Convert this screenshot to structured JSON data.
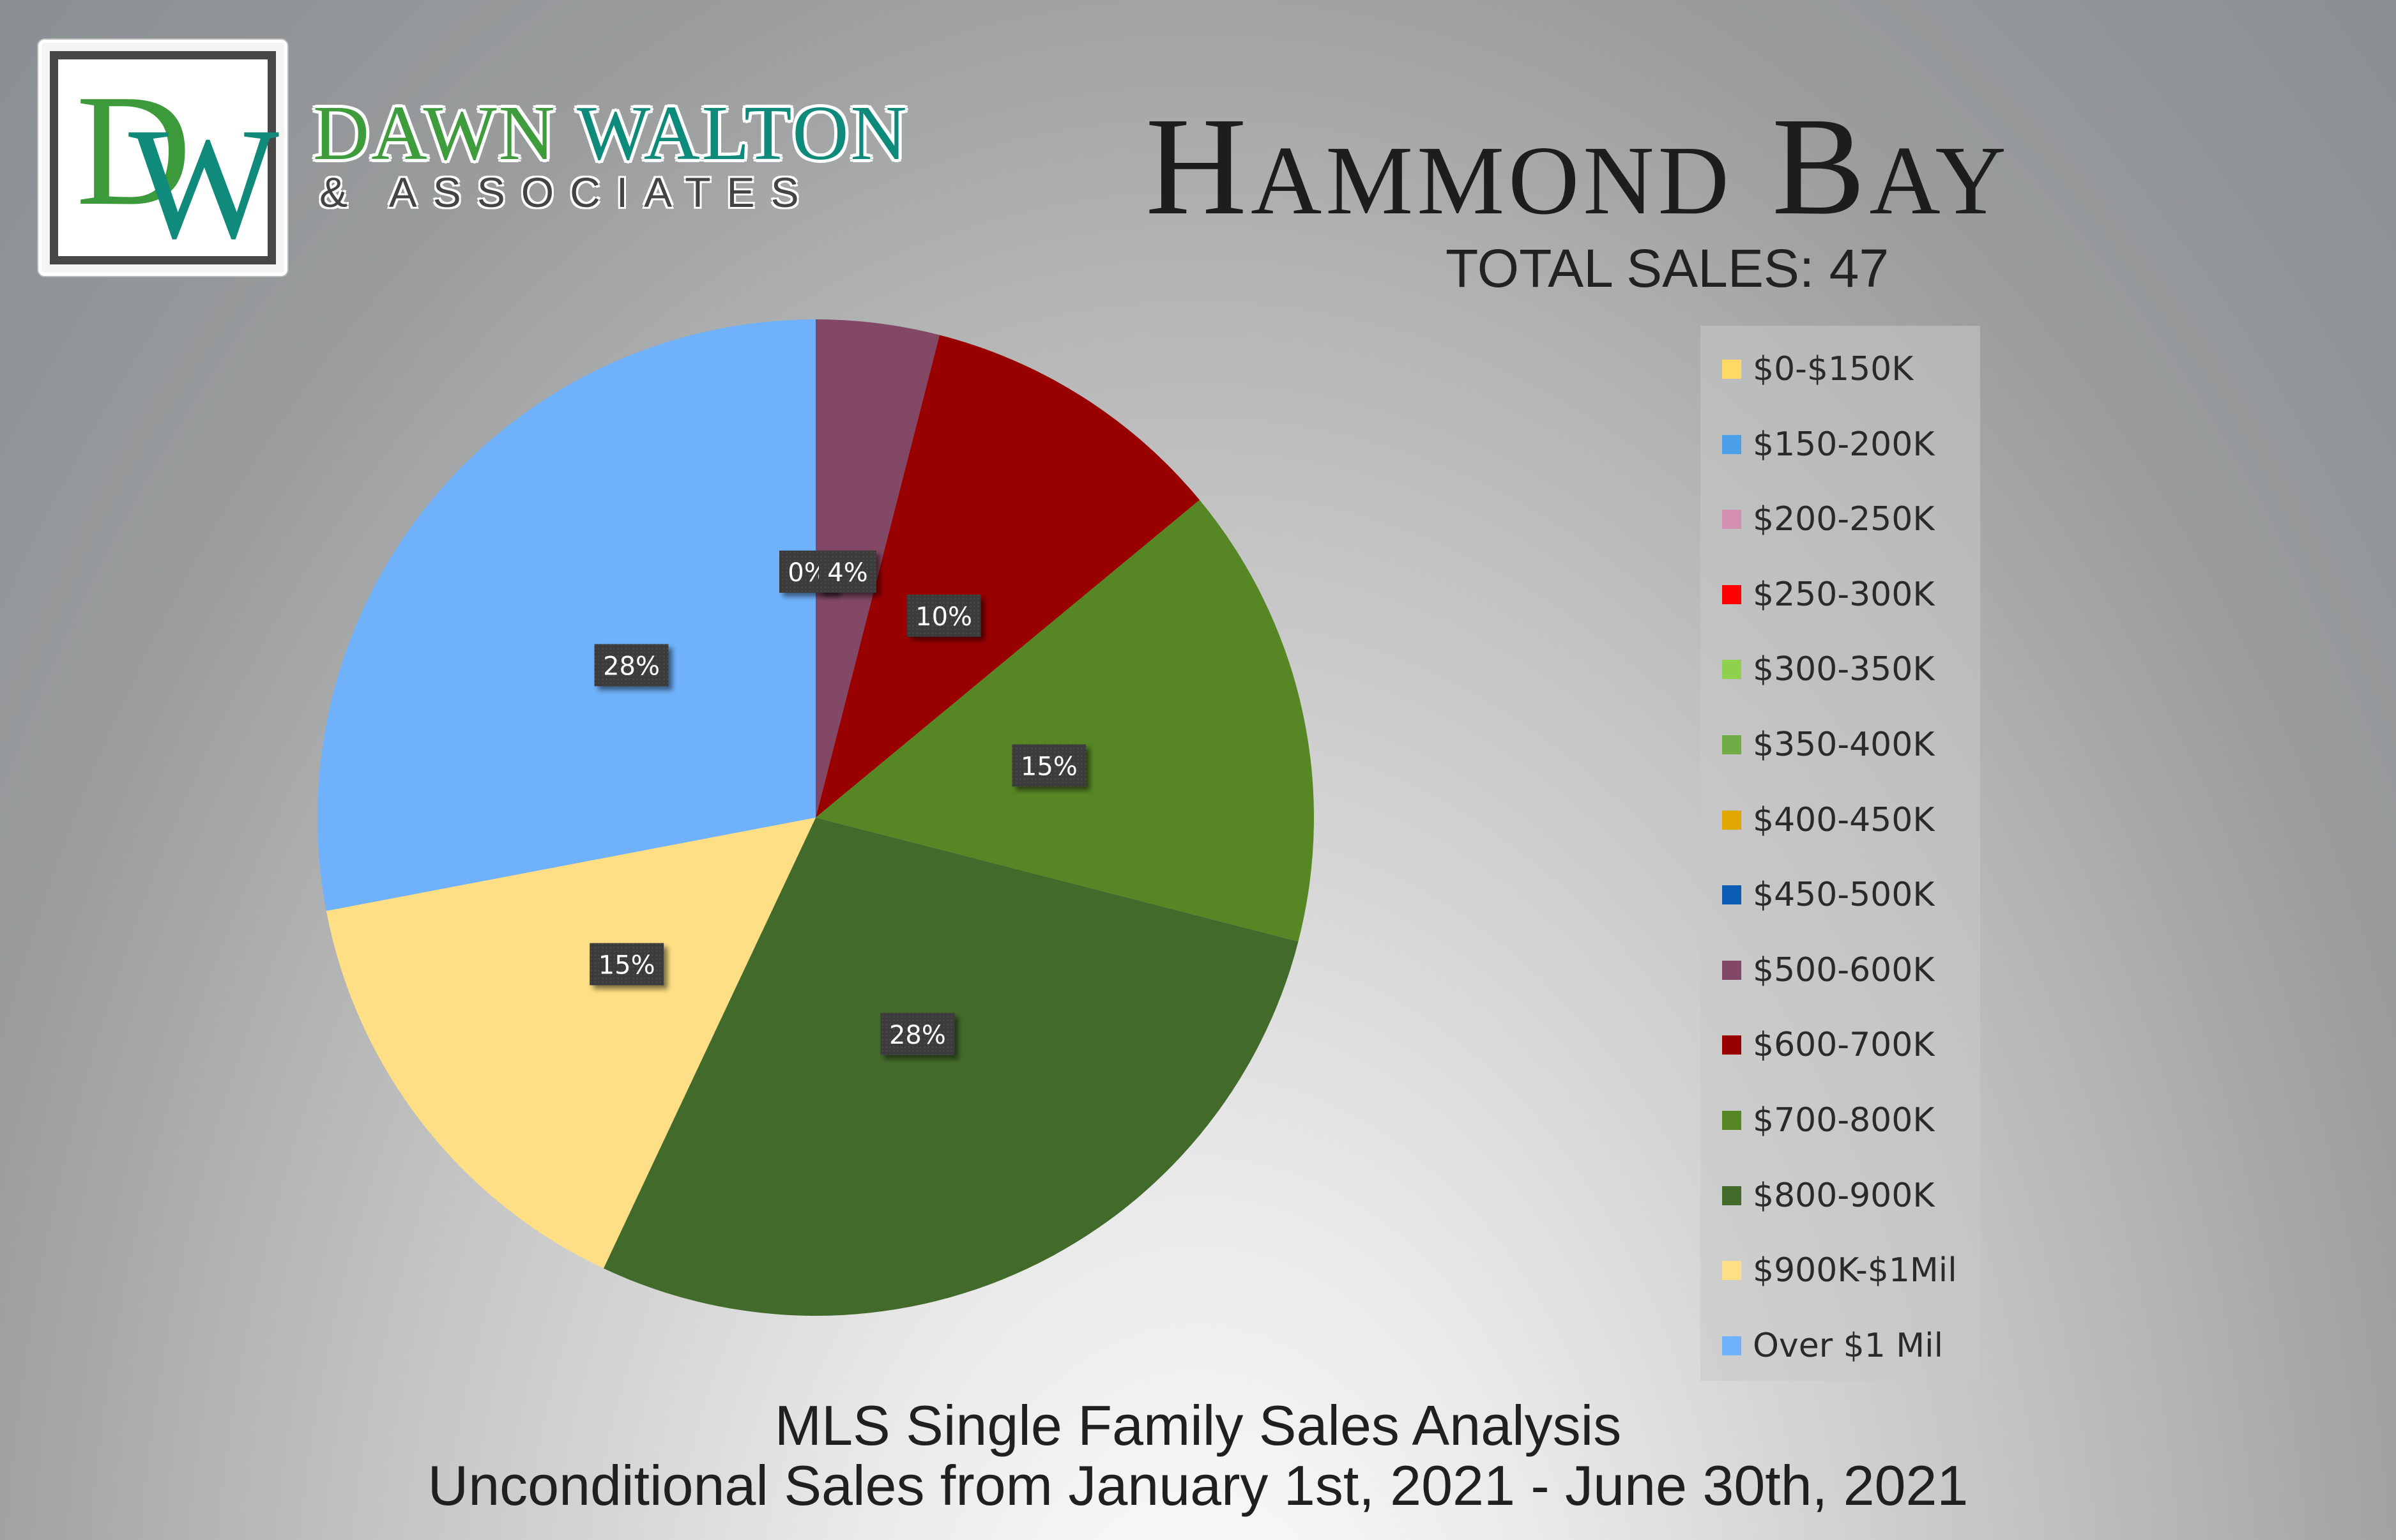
{
  "branding": {
    "logo_letters": "DW",
    "name_first": "DAWN",
    "name_second": "WALTON",
    "subtitle": "& ASSOCIATES"
  },
  "title": "Hammond Bay",
  "total_sales": "TOTAL SALES: 47",
  "footer": {
    "line1": "MLS Single Family Sales Analysis",
    "line2": "Unconditional Sales from January 1st, 2021 - June 30th, 2021"
  },
  "chart_data": {
    "type": "pie",
    "legend_position": "right",
    "start": "top, clockwise",
    "slices": [
      {
        "label": "$0-$150K",
        "value": 0,
        "display": "",
        "color": "#ffd966"
      },
      {
        "label": "$150-200K",
        "value": 0,
        "display": "",
        "color": "#4a9fe8"
      },
      {
        "label": "$200-250K",
        "value": 0,
        "display": "",
        "color": "#d58fb0"
      },
      {
        "label": "$250-300K",
        "value": 0,
        "display": "",
        "color": "#ff0000"
      },
      {
        "label": "$300-350K",
        "value": 0,
        "display": "",
        "color": "#8fd14f"
      },
      {
        "label": "$350-400K",
        "value": 0,
        "display": "",
        "color": "#70ad47"
      },
      {
        "label": "$400-450K",
        "value": 0,
        "display": "",
        "color": "#e0a800"
      },
      {
        "label": "$450-500K",
        "value": 0,
        "display": "0%",
        "color": "#0b5cb5"
      },
      {
        "label": "$500-600K",
        "value": 4,
        "display": "4%",
        "color": "#824865"
      },
      {
        "label": "$600-700K",
        "value": 10,
        "display": "10%",
        "color": "#990000"
      },
      {
        "label": "$700-800K",
        "value": 15,
        "display": "15%",
        "color": "#568724"
      },
      {
        "label": "$800-900K",
        "value": 28,
        "display": "28%",
        "color": "#426a2a"
      },
      {
        "label": "$900K-$1Mil",
        "value": 15,
        "display": "15%",
        "color": "#ffdf85"
      },
      {
        "label": "Over $1 Mil",
        "value": 28,
        "display": "28%",
        "color": "#6fb2fb"
      }
    ]
  }
}
